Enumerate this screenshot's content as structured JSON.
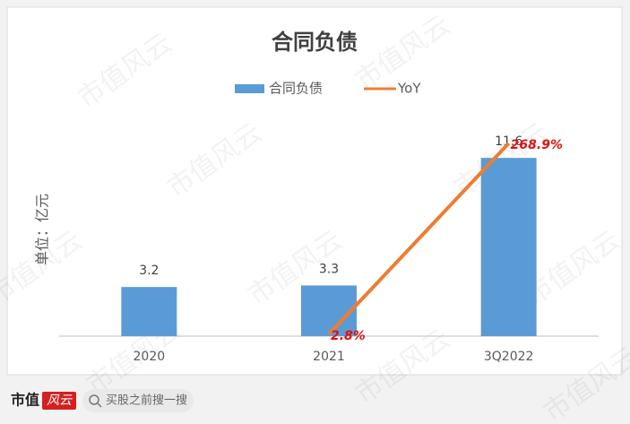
{
  "chart_data": {
    "type": "bar",
    "title": "合同负债",
    "y_label": "单位：亿元",
    "categories": [
      "2020",
      "2021",
      "3Q2022"
    ],
    "series": [
      {
        "name": "合同负债",
        "type": "bar",
        "color": "#5b9bd5",
        "values": [
          3.2,
          3.3,
          11.6
        ]
      },
      {
        "name": "YoY",
        "type": "line",
        "axis": "y2",
        "color": "#ed7d31",
        "values": [
          null,
          2.8,
          268.9
        ],
        "value_labels": [
          null,
          "2.8%",
          "268.9%"
        ],
        "label_color": "#e01010"
      }
    ],
    "ylim": [
      0,
      14
    ],
    "y2lim": [
      0,
      300
    ],
    "legend": "top"
  },
  "watermark": "市值风云",
  "footer": {
    "logo": "市值",
    "logo_badge": "风云",
    "search": "买股之前搜一搜"
  }
}
